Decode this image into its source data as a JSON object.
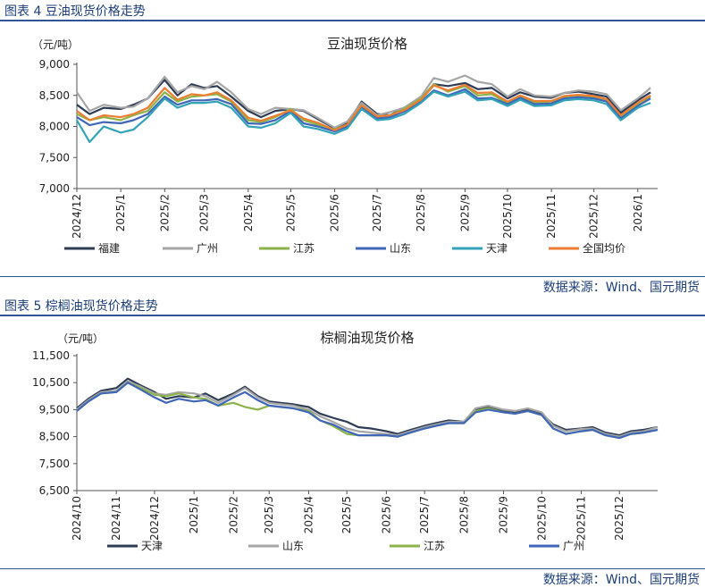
{
  "figure1": {
    "header": "图表 4 豆油现货价格走势",
    "source": "数据来源：Wind、国元期货"
  },
  "figure2": {
    "header": "图表 5 棕榈油现货价格走势",
    "source": "数据来源：Wind、国元期货"
  },
  "chart_data": [
    {
      "type": "line",
      "title": "豆油现货价格",
      "ylabel": "（元/吨）",
      "ylim": [
        7000,
        9000
      ],
      "yticks": [
        "7,000",
        "7,500",
        "8,000",
        "8,500",
        "9,000"
      ],
      "xlim": [
        "2024-12-01",
        "2026-01-15"
      ],
      "xticks": [
        "2024/12",
        "2025/1",
        "2025/2",
        "2025/3",
        "2025/4",
        "2025/5",
        "2025/6",
        "2025/7",
        "2025/8",
        "2025/9",
        "2025/10",
        "2025/11",
        "2025/12",
        "2026/1"
      ],
      "xtick_dates": [
        "2024-12-01",
        "2025-01-01",
        "2025-02-01",
        "2025-03-01",
        "2025-04-01",
        "2025-05-01",
        "2025-06-01",
        "2025-07-01",
        "2025-08-01",
        "2025-09-01",
        "2025-10-01",
        "2025-11-01",
        "2025-12-01",
        "2026-01-01"
      ],
      "legend_position": "bottom",
      "x": [
        "2024-12-01",
        "2024-12-10",
        "2024-12-20",
        "2025-01-01",
        "2025-01-10",
        "2025-01-20",
        "2025-02-01",
        "2025-02-10",
        "2025-02-20",
        "2025-03-01",
        "2025-03-10",
        "2025-03-20",
        "2025-04-01",
        "2025-04-10",
        "2025-04-20",
        "2025-05-01",
        "2025-05-10",
        "2025-05-20",
        "2025-06-01",
        "2025-06-10",
        "2025-06-20",
        "2025-07-01",
        "2025-07-10",
        "2025-07-20",
        "2025-08-01",
        "2025-08-10",
        "2025-08-20",
        "2025-09-01",
        "2025-09-10",
        "2025-09-20",
        "2025-10-01",
        "2025-10-10",
        "2025-10-20",
        "2025-11-01",
        "2025-11-10",
        "2025-11-20",
        "2025-12-01",
        "2025-12-10",
        "2025-12-20",
        "2026-01-01",
        "2026-01-10"
      ],
      "series": [
        {
          "name": "福建",
          "color": "#2e3c55",
          "values": [
            8350,
            8200,
            8300,
            8280,
            8350,
            8450,
            8750,
            8500,
            8680,
            8620,
            8650,
            8480,
            8250,
            8150,
            8250,
            8280,
            8250,
            8120,
            7970,
            8050,
            8400,
            8200,
            8180,
            8300,
            8450,
            8680,
            8650,
            8700,
            8600,
            8620,
            8450,
            8550,
            8480,
            8460,
            8540,
            8560,
            8520,
            8480,
            8220,
            8420,
            8550
          ]
        },
        {
          "name": "广州",
          "color": "#a6a6a6",
          "values": [
            8550,
            8250,
            8350,
            8300,
            8320,
            8450,
            8800,
            8550,
            8650,
            8600,
            8720,
            8550,
            8280,
            8200,
            8300,
            8280,
            8260,
            8140,
            7980,
            8080,
            8380,
            8180,
            8230,
            8300,
            8480,
            8780,
            8720,
            8820,
            8720,
            8680,
            8480,
            8600,
            8500,
            8480,
            8540,
            8580,
            8560,
            8520,
            8260,
            8450,
            8620
          ]
        },
        {
          "name": "江苏",
          "color": "#8cb34a",
          "values": [
            8200,
            8100,
            8150,
            8100,
            8180,
            8250,
            8550,
            8400,
            8480,
            8500,
            8520,
            8400,
            8100,
            8070,
            8150,
            8280,
            8100,
            8030,
            7950,
            8030,
            8340,
            8160,
            8180,
            8280,
            8450,
            8680,
            8560,
            8650,
            8500,
            8520,
            8370,
            8480,
            8380,
            8400,
            8480,
            8500,
            8470,
            8430,
            8160,
            8360,
            8480
          ]
        },
        {
          "name": "山东",
          "color": "#3f66b8",
          "values": [
            8150,
            8020,
            8070,
            8050,
            8100,
            8200,
            8480,
            8350,
            8420,
            8420,
            8440,
            8360,
            8050,
            8040,
            8100,
            8250,
            8050,
            8000,
            7920,
            8000,
            8300,
            8130,
            8150,
            8240,
            8400,
            8580,
            8500,
            8600,
            8450,
            8460,
            8360,
            8460,
            8360,
            8370,
            8450,
            8470,
            8450,
            8400,
            8130,
            8330,
            8450
          ]
        },
        {
          "name": "天津",
          "color": "#33a3b8",
          "values": [
            8100,
            7750,
            8000,
            7900,
            7950,
            8150,
            8450,
            8300,
            8380,
            8380,
            8400,
            8300,
            8000,
            7980,
            8050,
            8220,
            8000,
            7960,
            7880,
            7970,
            8280,
            8100,
            8120,
            8200,
            8380,
            8560,
            8480,
            8560,
            8420,
            8440,
            8330,
            8430,
            8330,
            8340,
            8420,
            8440,
            8420,
            8360,
            8100,
            8300,
            8380
          ]
        },
        {
          "name": "全国均价",
          "color": "#ed7d31",
          "values": [
            8250,
            8100,
            8180,
            8150,
            8200,
            8300,
            8620,
            8430,
            8520,
            8500,
            8550,
            8420,
            8140,
            8090,
            8170,
            8260,
            8130,
            8060,
            7940,
            8030,
            8340,
            8160,
            8180,
            8260,
            8430,
            8660,
            8580,
            8670,
            8540,
            8550,
            8400,
            8500,
            8410,
            8410,
            8490,
            8510,
            8490,
            8440,
            8180,
            8380,
            8500
          ]
        }
      ]
    },
    {
      "type": "line",
      "title": "棕榈油现货价格",
      "ylabel": "（元/吨）",
      "ylim": [
        6500,
        11500
      ],
      "yticks": [
        "6,500",
        "7,500",
        "8,500",
        "9,500",
        "10,500",
        "11,500"
      ],
      "xlim": [
        "2024-10-01",
        "2025-12-31"
      ],
      "xticks": [
        "2024/10",
        "2024/11",
        "2024/12",
        "2025/1",
        "2025/2",
        "2025/3",
        "2025/4",
        "2025/5",
        "2025/6",
        "2025/7",
        "2025/8",
        "2025/9",
        "2025/10",
        "2025/11",
        "2025/12"
      ],
      "xtick_dates": [
        "2024-10-01",
        "2024-11-01",
        "2024-12-01",
        "2025-01-01",
        "2025-02-01",
        "2025-03-01",
        "2025-04-01",
        "2025-05-01",
        "2025-06-01",
        "2025-07-01",
        "2025-08-01",
        "2025-09-01",
        "2025-10-01",
        "2025-11-01",
        "2025-12-01"
      ],
      "legend_position": "bottom",
      "x": [
        "2024-10-01",
        "2024-10-10",
        "2024-10-20",
        "2024-11-01",
        "2024-11-10",
        "2024-11-20",
        "2024-12-01",
        "2024-12-10",
        "2024-12-20",
        "2025-01-01",
        "2025-01-10",
        "2025-01-20",
        "2025-02-01",
        "2025-02-10",
        "2025-02-20",
        "2025-03-01",
        "2025-03-10",
        "2025-03-20",
        "2025-04-01",
        "2025-04-10",
        "2025-04-20",
        "2025-05-01",
        "2025-05-10",
        "2025-05-20",
        "2025-06-01",
        "2025-06-10",
        "2025-06-20",
        "2025-07-01",
        "2025-07-10",
        "2025-07-20",
        "2025-08-01",
        "2025-08-10",
        "2025-08-20",
        "2025-09-01",
        "2025-09-10",
        "2025-09-20",
        "2025-10-01",
        "2025-10-10",
        "2025-10-20",
        "2025-11-01",
        "2025-11-10",
        "2025-11-20",
        "2025-12-01",
        "2025-12-10",
        "2025-12-20",
        "2025-12-31"
      ],
      "series": [
        {
          "name": "天津",
          "color": "#2e3c55",
          "values": [
            9550,
            9900,
            10200,
            10300,
            10650,
            10400,
            10150,
            9900,
            10000,
            9950,
            10100,
            9850,
            10100,
            10350,
            10000,
            9800,
            9750,
            9700,
            9600,
            9350,
            9200,
            9050,
            8850,
            8800,
            8700,
            8600,
            8750,
            8900,
            9000,
            9100,
            9050,
            9500,
            9600,
            9450,
            9400,
            9500,
            9350,
            8950,
            8750,
            8800,
            8850,
            8650,
            8550,
            8700,
            8750,
            8850
          ]
        },
        {
          "name": "山东",
          "color": "#a6a6a6",
          "values": [
            9500,
            9850,
            10150,
            10200,
            10550,
            10350,
            10100,
            10050,
            10150,
            10100,
            10000,
            9750,
            10050,
            10300,
            9950,
            9750,
            9700,
            9650,
            9500,
            9250,
            9050,
            8800,
            8700,
            8650,
            8600,
            8550,
            8700,
            8850,
            8950,
            9050,
            9050,
            9550,
            9650,
            9500,
            9450,
            9550,
            9400,
            8900,
            8700,
            8780,
            8800,
            8600,
            8500,
            8650,
            8700,
            8850
          ]
        },
        {
          "name": "江苏",
          "color": "#8cb34a",
          "values": [
            9450,
            9800,
            10100,
            10150,
            10500,
            10300,
            10050,
            10000,
            10100,
            9950,
            9900,
            9650,
            9750,
            9600,
            9500,
            9650,
            9600,
            9550,
            9450,
            9100,
            8900,
            8600,
            8550,
            8550,
            8550,
            8500,
            8650,
            8800,
            8900,
            9000,
            9000,
            9450,
            9550,
            9400,
            9350,
            9450,
            9300,
            8800,
            8600,
            8700,
            8750,
            8550,
            8450,
            8600,
            8650,
            8750
          ]
        },
        {
          "name": "广州",
          "color": "#3f66b8",
          "values": [
            9450,
            9800,
            10100,
            10150,
            10500,
            10250,
            9950,
            9750,
            9900,
            9800,
            9850,
            9650,
            9950,
            10150,
            9850,
            9650,
            9600,
            9550,
            9400,
            9100,
            8950,
            8700,
            8550,
            8550,
            8550,
            8500,
            8650,
            8800,
            8900,
            9000,
            9000,
            9400,
            9500,
            9400,
            9350,
            9450,
            9300,
            8800,
            8600,
            8700,
            8750,
            8550,
            8450,
            8600,
            8650,
            8750
          ]
        }
      ]
    }
  ]
}
